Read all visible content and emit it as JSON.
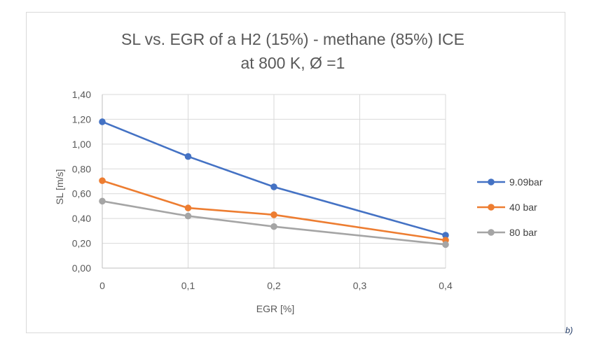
{
  "panel_label": "b)",
  "chart_data": {
    "type": "line",
    "title_lines": [
      "SL vs. EGR  of a H2 (15%) - methane (85%) ICE",
      "at 800 K, Ø =1"
    ],
    "xlabel": "EGR  [%]",
    "ylabel": "SL [m/s]",
    "xlim": [
      0,
      0.4
    ],
    "ylim": [
      0,
      1.4
    ],
    "x_ticks": [
      "0",
      "0,1",
      "0,2",
      "0,3",
      "0,4"
    ],
    "y_ticks": [
      "0,00",
      "0,20",
      "0,40",
      "0,60",
      "0,80",
      "1,00",
      "1,20",
      "1,40"
    ],
    "grid": true,
    "legend_position": "right",
    "series": [
      {
        "name": "9.09bar",
        "color": "#4472c4",
        "x": [
          0,
          0.1,
          0.2,
          0.4
        ],
        "y": [
          1.18,
          0.9,
          0.655,
          0.265
        ]
      },
      {
        "name": "40 bar",
        "color": "#ed7d31",
        "x": [
          0,
          0.1,
          0.2,
          0.4
        ],
        "y": [
          0.705,
          0.485,
          0.43,
          0.225
        ]
      },
      {
        "name": "80 bar",
        "color": "#a5a5a5",
        "x": [
          0,
          0.1,
          0.2,
          0.4
        ],
        "y": [
          0.54,
          0.42,
          0.335,
          0.19
        ]
      }
    ]
  }
}
